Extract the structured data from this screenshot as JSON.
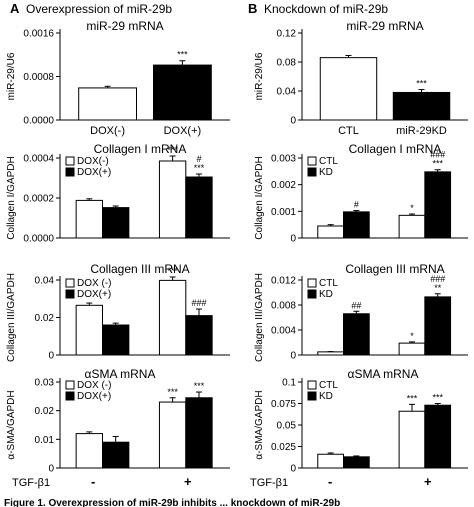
{
  "header": {
    "left_letter": "A",
    "left_title": "Overexpression of miR-29b",
    "right_letter": "B",
    "right_title": "Knockdown of miR-29b"
  },
  "treatment": {
    "label": "TGF-β1",
    "minus": "-",
    "plus": "+"
  },
  "caption": "Figure 1. Overexpression of miR-29b inhibits ... knockdown of miR-29b",
  "chart_data": [
    {
      "type": "bar",
      "title": "miR-29 mRNA",
      "ylabel": "miR-29/U6",
      "ylim": [
        0,
        0.0016
      ],
      "yticks": [
        0,
        0.0008,
        0.0016
      ],
      "yticklabels": [
        "0.0000",
        "0.0008",
        "0.0016"
      ],
      "categories": [
        "DOX(-)",
        "DOX(+)"
      ],
      "series": [
        {
          "values": [
            0.00059,
            0.00101
          ],
          "errors": [
            3e-05,
            8e-05
          ],
          "fill": [
            "#ffffff",
            "#000000"
          ]
        }
      ],
      "annotations": [
        {
          "category": 1,
          "text": "***"
        }
      ]
    },
    {
      "type": "bar",
      "title": "miR-29 mRNA",
      "ylabel": "miR-29/U6",
      "ylim": [
        0,
        0.12
      ],
      "yticks": [
        0,
        0.04,
        0.08,
        0.12
      ],
      "yticklabels": [
        "0",
        "0.04",
        "0.08",
        "0.12"
      ],
      "categories": [
        "CTL",
        "miR-29KD"
      ],
      "series": [
        {
          "values": [
            0.086,
            0.038
          ],
          "errors": [
            0.003,
            0.004
          ],
          "fill": [
            "#ffffff",
            "#000000"
          ]
        }
      ],
      "annotations": [
        {
          "category": 1,
          "text": "***"
        }
      ]
    },
    {
      "type": "bar",
      "title": "Collagen I mRNA",
      "ylabel": "Collagen I/GAPDH",
      "ylim": [
        0,
        0.0004
      ],
      "yticks": [
        0,
        0.0002,
        0.0004
      ],
      "yticklabels": [
        "0.0000",
        "0.0002",
        "0.0004"
      ],
      "categories": [
        "-",
        "+"
      ],
      "legend": [
        "DOX(-)",
        "DOX(+)"
      ],
      "legend_position": "top-left",
      "series": [
        {
          "name": "DOX(-)",
          "values": [
            0.000188,
            0.000385
          ],
          "errors": [
            8e-06,
            2.5e-05
          ],
          "fill": "#ffffff"
        },
        {
          "name": "DOX(+)",
          "values": [
            0.000152,
            0.000305
          ],
          "errors": [
            8e-06,
            1.5e-05
          ],
          "fill": "#000000"
        }
      ],
      "annotations": [
        {
          "category": 1,
          "series": 0,
          "text": "***"
        },
        {
          "category": 1,
          "series": 1,
          "text": "***"
        },
        {
          "category": 1,
          "series": 1,
          "text": "#",
          "level": 2
        }
      ]
    },
    {
      "type": "bar",
      "title": "Collagen I mRNA",
      "ylabel": "Collagen I/GAPDH",
      "ylim": [
        0,
        0.003
      ],
      "yticks": [
        0,
        0.001,
        0.002,
        0.003
      ],
      "yticklabels": [
        "0",
        "0.001",
        "0.002",
        "0.003"
      ],
      "categories": [
        "-",
        "+"
      ],
      "legend": [
        "CTL",
        "KD"
      ],
      "legend_position": "top-left",
      "series": [
        {
          "name": "CTL",
          "values": [
            0.00045,
            0.00085
          ],
          "errors": [
            5e-05,
            5e-05
          ],
          "fill": "#ffffff"
        },
        {
          "name": "KD",
          "values": [
            0.00098,
            0.00248
          ],
          "errors": [
            5e-05,
            8e-05
          ],
          "fill": "#000000"
        }
      ],
      "annotations": [
        {
          "category": 0,
          "series": 1,
          "text": "#"
        },
        {
          "category": 1,
          "series": 0,
          "text": "*"
        },
        {
          "category": 1,
          "series": 1,
          "text": "***"
        },
        {
          "category": 1,
          "series": 1,
          "text": "###",
          "level": 2
        }
      ]
    },
    {
      "type": "bar",
      "title": "Collagen III mRNA",
      "ylabel": "Collagen III/GAPDH",
      "ylim": [
        0,
        0.04
      ],
      "yticks": [
        0,
        0.02,
        0.04
      ],
      "yticklabels": [
        "0",
        "0.02",
        "0.04"
      ],
      "categories": [
        "-",
        "+"
      ],
      "legend": [
        "DOX (-)",
        "DOX(+)"
      ],
      "legend_position": "top-left",
      "series": [
        {
          "name": "DOX (-)",
          "values": [
            0.0265,
            0.0398
          ],
          "errors": [
            0.0012,
            0.0018
          ],
          "fill": "#ffffff"
        },
        {
          "name": "DOX(+)",
          "values": [
            0.016,
            0.021
          ],
          "errors": [
            0.001,
            0.0035
          ],
          "fill": "#000000"
        }
      ],
      "annotations": [
        {
          "category": 1,
          "series": 0,
          "text": "***"
        },
        {
          "category": 1,
          "series": 1,
          "text": "###"
        }
      ]
    },
    {
      "type": "bar",
      "title": "Collagen III mRNA",
      "ylabel": "Collagen III/GAPDH",
      "ylim": [
        0,
        0.012
      ],
      "yticks": [
        0,
        0.004,
        0.008,
        0.012
      ],
      "yticklabels": [
        "0",
        "0.004",
        "0.008",
        "0.012"
      ],
      "categories": [
        "-",
        "+"
      ],
      "legend": [
        "CTL",
        "KD"
      ],
      "legend_position": "top-left",
      "series": [
        {
          "name": "CTL",
          "values": [
            0.0005,
            0.0019
          ],
          "errors": [
            5e-05,
            0.0002
          ],
          "fill": "#ffffff"
        },
        {
          "name": "KD",
          "values": [
            0.0066,
            0.0093
          ],
          "errors": [
            0.0004,
            0.0005
          ],
          "fill": "#000000"
        }
      ],
      "annotations": [
        {
          "category": 0,
          "series": 1,
          "text": "##"
        },
        {
          "category": 1,
          "series": 0,
          "text": "*"
        },
        {
          "category": 1,
          "series": 1,
          "text": "**"
        },
        {
          "category": 1,
          "series": 1,
          "text": "###",
          "level": 2
        }
      ]
    },
    {
      "type": "bar",
      "title": "αSMA mRNA",
      "ylabel": "α-SMA/GAPDH",
      "ylim": [
        0,
        0.03
      ],
      "yticks": [
        0,
        0.01,
        0.02,
        0.03
      ],
      "yticklabels": [
        "0",
        "0.01",
        "0.02",
        "0.03"
      ],
      "categories": [
        "-",
        "+"
      ],
      "legend": [
        "DOX (-)",
        "DOX(+)"
      ],
      "legend_position": "top-left",
      "series": [
        {
          "name": "DOX (-)",
          "values": [
            0.012,
            0.023
          ],
          "errors": [
            0.0006,
            0.0015
          ],
          "fill": "#ffffff"
        },
        {
          "name": "DOX(+)",
          "values": [
            0.009,
            0.0245
          ],
          "errors": [
            0.002,
            0.002
          ],
          "fill": "#000000"
        }
      ],
      "annotations": [
        {
          "category": 1,
          "series": 0,
          "text": "***"
        },
        {
          "category": 1,
          "series": 1,
          "text": "***"
        }
      ]
    },
    {
      "type": "bar",
      "title": "αSMA mRNA",
      "ylabel": "α-SMA/GAPDH",
      "ylim": [
        0,
        0.1
      ],
      "yticks": [
        0,
        0.025,
        0.05,
        0.075,
        0.1
      ],
      "yticklabels": [
        "0",
        "0.025",
        "0.05",
        "0.075",
        "0.1"
      ],
      "categories": [
        "-",
        "+"
      ],
      "legend": [
        "CTL",
        "KD"
      ],
      "legend_position": "top-left",
      "series": [
        {
          "name": "CTL",
          "values": [
            0.016,
            0.066
          ],
          "errors": [
            0.0015,
            0.008
          ],
          "fill": "#ffffff"
        },
        {
          "name": "KD",
          "values": [
            0.013,
            0.073
          ],
          "errors": [
            0.001,
            0.002
          ],
          "fill": "#000000"
        }
      ],
      "annotations": [
        {
          "category": 1,
          "series": 0,
          "text": "***"
        },
        {
          "category": 1,
          "series": 1,
          "text": "***"
        }
      ]
    }
  ]
}
